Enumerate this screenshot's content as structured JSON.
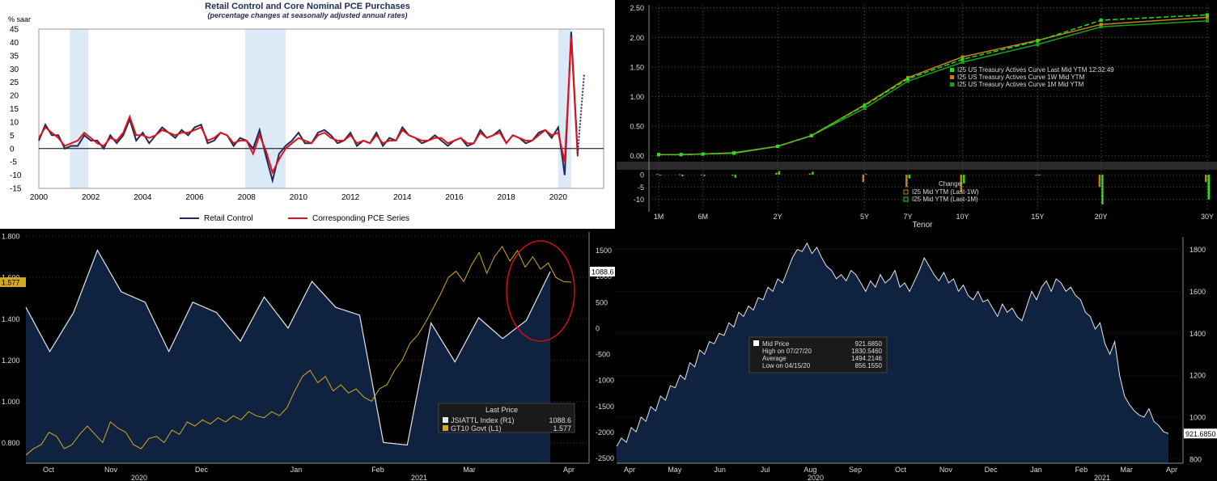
{
  "chart_data": [
    {
      "type": "line",
      "title": "Retail Control and Core Nominal PCE Purchases",
      "subtitle": "(percentage changes at seasonally adjusted annual rates)",
      "ylabel": "% saar",
      "ylim": [
        -15,
        45
      ],
      "yticks": [
        "45",
        "40",
        "35",
        "30",
        "25",
        "20",
        "15",
        "10",
        "5",
        "0",
        "-5",
        "-10",
        "-15"
      ],
      "xticks": [
        "2000",
        "2002",
        "2004",
        "2006",
        "2008",
        "2010",
        "2012",
        "2014",
        "2016",
        "2018",
        "2020"
      ],
      "xlim": [
        2000,
        2021.75
      ],
      "recessions": [
        [
          2001.2,
          2001.9
        ],
        [
          2007.95,
          2009.5
        ],
        [
          2020.0,
          2020.5
        ]
      ],
      "series": [
        {
          "name": "Retail Control",
          "color": "#1f2a5a",
          "x": [
            2000.0,
            2000.25,
            2000.5,
            2000.75,
            2001.0,
            2001.25,
            2001.5,
            2001.75,
            2002.0,
            2002.25,
            2002.5,
            2002.75,
            2003.0,
            2003.25,
            2003.5,
            2003.75,
            2004.0,
            2004.25,
            2004.5,
            2004.75,
            2005.0,
            2005.25,
            2005.5,
            2005.75,
            2006.0,
            2006.25,
            2006.5,
            2006.75,
            2007.0,
            2007.25,
            2007.5,
            2007.75,
            2008.0,
            2008.25,
            2008.5,
            2008.75,
            2009.0,
            2009.25,
            2009.5,
            2009.75,
            2010.0,
            2010.25,
            2010.5,
            2010.75,
            2011.0,
            2011.25,
            2011.5,
            2011.75,
            2012.0,
            2012.25,
            2012.5,
            2012.75,
            2013.0,
            2013.25,
            2013.5,
            2013.75,
            2014.0,
            2014.25,
            2014.5,
            2014.75,
            2015.0,
            2015.25,
            2015.5,
            2015.75,
            2016.0,
            2016.25,
            2016.5,
            2016.75,
            2017.0,
            2017.25,
            2017.5,
            2017.75,
            2018.0,
            2018.25,
            2018.5,
            2018.75,
            2019.0,
            2019.25,
            2019.5,
            2019.75,
            2020.0,
            2020.25,
            2020.5,
            2020.75
          ],
          "y": [
            3,
            9,
            5,
            5,
            0,
            1,
            1,
            5,
            3,
            3,
            0,
            5,
            2,
            5,
            11,
            3,
            6,
            2,
            5,
            8,
            6,
            4,
            7,
            5,
            8,
            9,
            2,
            3,
            6,
            5,
            1,
            4,
            3,
            0,
            7,
            -3,
            -12,
            -2,
            1,
            3,
            6,
            2,
            2,
            6,
            7,
            5,
            2,
            3,
            6,
            1,
            3,
            2,
            6,
            1,
            4,
            3,
            8,
            5,
            4,
            2,
            3,
            5,
            3,
            1,
            3,
            4,
            1,
            2,
            7,
            4,
            5,
            7,
            2,
            5,
            4,
            2,
            3,
            6,
            7,
            4,
            8,
            -10,
            44,
            -2
          ]
        },
        {
          "name": "Corresponding PCE Series",
          "color": "#e0121b",
          "x": [
            2000.0,
            2000.25,
            2000.5,
            2000.75,
            2001.0,
            2001.25,
            2001.5,
            2001.75,
            2002.0,
            2002.25,
            2002.5,
            2002.75,
            2003.0,
            2003.25,
            2003.5,
            2003.75,
            2004.0,
            2004.25,
            2004.5,
            2004.75,
            2005.0,
            2005.25,
            2005.5,
            2005.75,
            2006.0,
            2006.25,
            2006.5,
            2006.75,
            2007.0,
            2007.25,
            2007.5,
            2007.75,
            2008.0,
            2008.25,
            2008.5,
            2008.75,
            2009.0,
            2009.25,
            2009.5,
            2009.75,
            2010.0,
            2010.25,
            2010.5,
            2010.75,
            2011.0,
            2011.25,
            2011.5,
            2011.75,
            2012.0,
            2012.25,
            2012.5,
            2012.75,
            2013.0,
            2013.25,
            2013.5,
            2013.75,
            2014.0,
            2014.25,
            2014.5,
            2014.75,
            2015.0,
            2015.25,
            2015.5,
            2015.75,
            2016.0,
            2016.25,
            2016.5,
            2016.75,
            2017.0,
            2017.25,
            2017.5,
            2017.75,
            2018.0,
            2018.25,
            2018.5,
            2018.75,
            2019.0,
            2019.25,
            2019.5,
            2019.75,
            2020.0,
            2020.25,
            2020.5,
            2020.75
          ],
          "y": [
            4,
            8,
            6,
            4,
            1,
            2,
            3,
            6,
            4,
            2,
            1,
            4,
            3,
            6,
            12,
            5,
            5,
            4,
            5,
            7,
            6,
            5,
            6,
            6,
            7,
            8,
            3,
            4,
            6,
            5,
            2,
            3,
            3,
            -2,
            5,
            -1,
            -9,
            -4,
            0,
            2,
            4,
            3,
            2,
            5,
            6,
            4,
            3,
            3,
            5,
            2,
            3,
            2,
            5,
            2,
            3,
            3,
            7,
            5,
            4,
            3,
            3,
            4,
            4,
            2,
            3,
            4,
            2,
            2,
            6,
            4,
            5,
            6,
            2,
            5,
            4,
            3,
            3,
            5,
            7,
            5,
            6,
            -5,
            42,
            -3
          ]
        },
        {
          "name": "",
          "color": "#1f2a5a",
          "dashed": true,
          "x": [
            2020.75,
            2021.0
          ],
          "y": [
            -2,
            28
          ]
        }
      ],
      "legend": "bottom"
    },
    {
      "type": "line",
      "xlabel": "Tenor",
      "xticks": [
        "1M",
        "6M",
        "2Y",
        "5Y",
        "7Y",
        "10Y",
        "15Y",
        "20Y",
        "30Y"
      ],
      "yticks_top": [
        "2.50",
        "2.00",
        "1.50",
        "1.00",
        "0.50",
        "0.00"
      ],
      "ylim_top": [
        -0.1,
        2.55
      ],
      "yticks_bottom": [
        "0",
        "-5",
        "-10"
      ],
      "ylim_bottom": [
        -15,
        2
      ],
      "series": [
        {
          "name": "I25 US Treasury Actives Curve Last Mid YTM 12:32:49",
          "color": "#22dd22",
          "dashed": true,
          "y": [
            0.02,
            0.02,
            0.03,
            0.05,
            0.16,
            0.34,
            0.85,
            1.3,
            1.63,
            1.94,
            2.29,
            2.38
          ]
        },
        {
          "name": "I25 US Treasury Actives Curve 1W Mid YTM",
          "color": "#c8801a",
          "y": [
            0.02,
            0.02,
            0.03,
            0.05,
            0.16,
            0.34,
            0.86,
            1.32,
            1.67,
            1.95,
            2.22,
            2.34
          ]
        },
        {
          "name": "I25 US Treasury Actives Curve 1M Mid YTM",
          "color": "#1aa01a",
          "y": [
            0.02,
            0.02,
            0.03,
            0.04,
            0.16,
            0.34,
            0.8,
            1.26,
            1.58,
            1.88,
            2.18,
            2.28
          ]
        }
      ],
      "tenors_years": [
        0.083,
        0.25,
        0.5,
        1,
        2,
        3,
        5,
        7,
        10,
        15,
        20,
        30
      ],
      "change_title": "Change",
      "change_series": [
        {
          "name": "I25 Mid YTM (Last-1W)",
          "color": "#b8860b",
          "values": [
            0.3,
            0.2,
            -0.3,
            -0.4,
            0.8,
            0.5,
            -3,
            -5,
            -7,
            0,
            -5,
            -3
          ]
        },
        {
          "name": "I25 Mid YTM (Last-1M)",
          "color": "#22dd22",
          "values": [
            -0.2,
            -0.6,
            -0.5,
            -1.2,
            1.5,
            1.2,
            0.3,
            -1.5,
            -3.5,
            0,
            -12,
            -10
          ]
        }
      ]
    },
    {
      "type": "area",
      "months": [
        "Oct",
        "Nov",
        "Dec",
        "Jan",
        "Feb",
        "Mar",
        "Apr"
      ],
      "years": [
        "2020",
        "2021"
      ],
      "left_yticks": [
        "1.800",
        "1.600",
        "1.400",
        "1.200",
        "1.000",
        "0.800"
      ],
      "right_yticks": [
        "1500",
        "1000",
        "500",
        "0",
        "-500",
        "-1000",
        "-1500",
        "-2000",
        "-2500"
      ],
      "left_ylim": [
        0.7,
        1.82
      ],
      "right_ylim": [
        -2600,
        1850
      ],
      "legend_title": "Last Price",
      "series": [
        {
          "name": "JSIATTL Index  (R1)",
          "last": "1088.6",
          "color": "#e6e6e6",
          "values": [
            400,
            -450,
            300,
            1500,
            700,
            500,
            -450,
            500,
            300,
            -250,
            600,
            0,
            900,
            400,
            250,
            -2200,
            -2250,
            100,
            -650,
            200,
            -200,
            150,
            1088.6
          ]
        },
        {
          "name": "GT10 Govt  (L1)",
          "last": "1.577",
          "color": "#d4a91b",
          "values": [
            0.74,
            0.77,
            0.79,
            0.85,
            0.83,
            0.77,
            0.79,
            0.84,
            0.88,
            0.84,
            0.8,
            0.9,
            0.87,
            0.85,
            0.79,
            0.77,
            0.82,
            0.83,
            0.8,
            0.86,
            0.84,
            0.9,
            0.88,
            0.91,
            0.89,
            0.92,
            0.9,
            0.93,
            0.91,
            0.95,
            0.93,
            0.92,
            0.95,
            0.93,
            0.97,
            1.05,
            1.12,
            1.15,
            1.09,
            1.12,
            1.05,
            1.08,
            1.04,
            1.06,
            1.02,
            1.0,
            1.06,
            1.08,
            1.15,
            1.2,
            1.28,
            1.32,
            1.38,
            1.45,
            1.52,
            1.6,
            1.63,
            1.58,
            1.66,
            1.72,
            1.62,
            1.7,
            1.75,
            1.68,
            1.73,
            1.65,
            1.7,
            1.64,
            1.67,
            1.6,
            1.58,
            1.577
          ]
        }
      ],
      "last_left": "1.577",
      "last_right": "1088.6"
    },
    {
      "type": "area",
      "months": [
        "Apr",
        "May",
        "Jun",
        "Jul",
        "Aug",
        "Sep",
        "Oct",
        "Nov",
        "Dec",
        "Jan",
        "Feb",
        "Mar",
        "Apr"
      ],
      "years": [
        "2020",
        "2021"
      ],
      "yticks": [
        "1800",
        "1600",
        "1400",
        "1200",
        "1000",
        "800"
      ],
      "ylim": [
        780,
        1860
      ],
      "legend": [
        {
          "label": "Mid Price",
          "value": "921.6850"
        },
        {
          "label": "High on 07/27/20",
          "value": "1830.5460"
        },
        {
          "label": "Average",
          "value": "1494.2146"
        },
        {
          "label": "Low on 04/15/20",
          "value": "856.1550"
        }
      ],
      "last": "921.6850",
      "series": [
        {
          "name": "Mid Price",
          "color": "#e6e6e6",
          "values": [
            860,
            900,
            880,
            950,
            930,
            1000,
            980,
            1050,
            1030,
            1100,
            1080,
            1150,
            1140,
            1200,
            1180,
            1260,
            1240,
            1320,
            1300,
            1360,
            1350,
            1400,
            1390,
            1450,
            1430,
            1500,
            1480,
            1530,
            1510,
            1570,
            1560,
            1620,
            1600,
            1660,
            1640,
            1700,
            1760,
            1800,
            1790,
            1830,
            1780,
            1810,
            1760,
            1720,
            1700,
            1660,
            1680,
            1650,
            1700,
            1680,
            1640,
            1600,
            1650,
            1620,
            1680,
            1640,
            1660,
            1700,
            1620,
            1640,
            1600,
            1650,
            1700,
            1760,
            1720,
            1680,
            1650,
            1690,
            1640,
            1660,
            1600,
            1630,
            1580,
            1560,
            1600,
            1550,
            1560,
            1520,
            1480,
            1540,
            1500,
            1520,
            1480,
            1460,
            1530,
            1600,
            1560,
            1620,
            1650,
            1600,
            1660,
            1640,
            1600,
            1620,
            1580,
            1560,
            1500,
            1480,
            1420,
            1450,
            1350,
            1300,
            1360,
            1200,
            1100,
            1060,
            1030,
            1010,
            1000,
            1040,
            980,
            960,
            930,
            921.685
          ]
        }
      ]
    }
  ]
}
